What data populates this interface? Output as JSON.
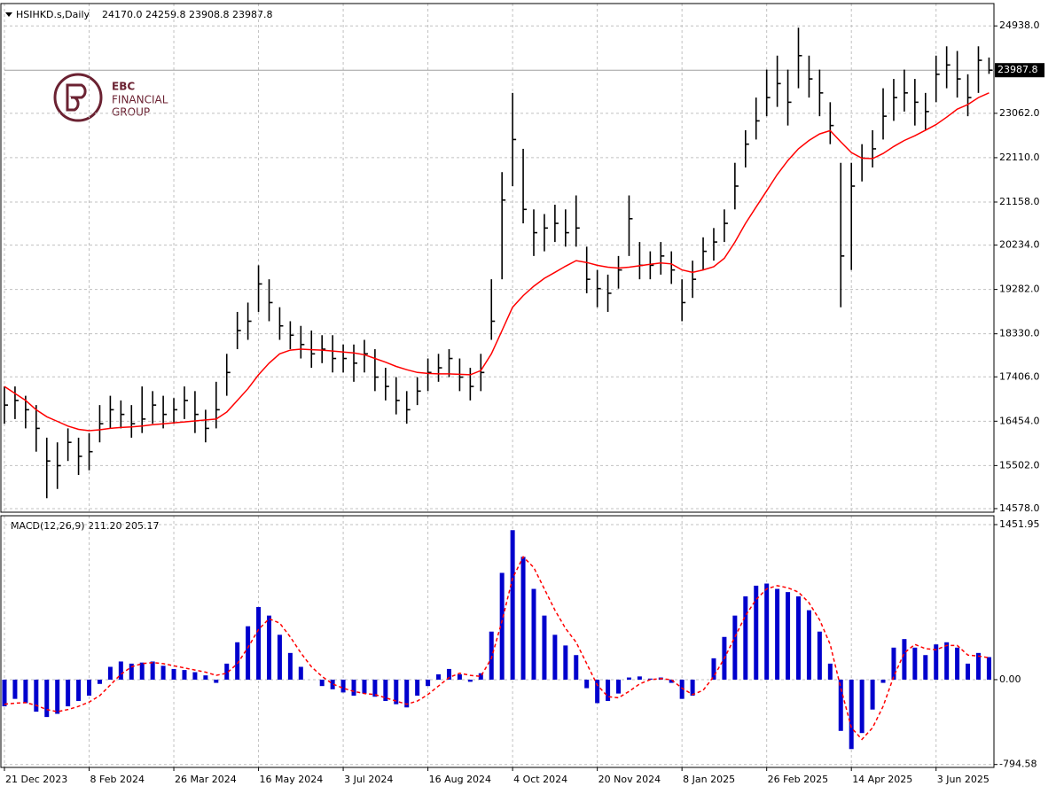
{
  "logo": {
    "lines": [
      "EBC",
      "FINANCIAL",
      "GROUP"
    ]
  },
  "chart_data": [
    {
      "type": "hlc",
      "title": "HSIHKD.s,Daily",
      "quote": "24170.0 24259.8 23908.8 23987.8",
      "color": "#000000",
      "grid": true,
      "categories": [
        "21 Dec 2023",
        null,
        null,
        null,
        null,
        null,
        null,
        null,
        "8 Feb 2024",
        null,
        null,
        null,
        null,
        null,
        null,
        null,
        "26 Mar 2024",
        null,
        null,
        null,
        null,
        null,
        null,
        null,
        "16 May 2024",
        null,
        null,
        null,
        null,
        null,
        null,
        null,
        "3 Jul 2024",
        null,
        null,
        null,
        null,
        null,
        null,
        null,
        "16 Aug 2024",
        null,
        null,
        null,
        null,
        null,
        null,
        null,
        "4 Oct 2024",
        null,
        null,
        null,
        null,
        null,
        null,
        null,
        "20 Nov 2024",
        null,
        null,
        null,
        null,
        null,
        null,
        null,
        "8 Jan 2025",
        null,
        null,
        null,
        null,
        null,
        null,
        null,
        "26 Feb 2025",
        null,
        null,
        null,
        null,
        null,
        null,
        null,
        "14 Apr 2025",
        null,
        null,
        null,
        null,
        null,
        null,
        null,
        "3 Jun 2025",
        null,
        null,
        null,
        null,
        null
      ],
      "high": [
        17200,
        17200,
        17000,
        16800,
        16100,
        16000,
        16300,
        16100,
        16200,
        16800,
        17000,
        16900,
        16800,
        17200,
        17100,
        17000,
        16950,
        17200,
        17100,
        16700,
        17300,
        17900,
        18800,
        19000,
        19800,
        19500,
        18900,
        18600,
        18500,
        18400,
        18300,
        18300,
        18100,
        18100,
        18200,
        18000,
        17600,
        17400,
        17100,
        17400,
        17800,
        17900,
        18000,
        17800,
        17600,
        17900,
        19500,
        21800,
        23500,
        22300,
        21000,
        20900,
        21100,
        21000,
        21300,
        20200,
        19700,
        19600,
        20000,
        21300,
        20300,
        20100,
        20300,
        20100,
        19500,
        19900,
        20400,
        20600,
        21000,
        22000,
        22700,
        23400,
        24000,
        24300,
        24000,
        24900,
        24300,
        24000,
        23300,
        22000,
        22000,
        22400,
        22700,
        23600,
        23800,
        24000,
        23800,
        23500,
        24300,
        24500,
        24400,
        23900,
        24500,
        24259.8
      ],
      "low": [
        16400,
        16500,
        16300,
        15800,
        14800,
        15000,
        15600,
        15300,
        15400,
        16000,
        16300,
        16300,
        16100,
        16200,
        16400,
        16300,
        16400,
        16500,
        16200,
        16000,
        16300,
        17000,
        18000,
        18200,
        18800,
        18600,
        18200,
        18000,
        17800,
        17600,
        17700,
        17500,
        17500,
        17300,
        17500,
        17100,
        16900,
        16600,
        16400,
        16800,
        17100,
        17300,
        17400,
        17100,
        16900,
        17100,
        18200,
        19500,
        21500,
        20700,
        20000,
        20100,
        20300,
        20200,
        20200,
        19200,
        18900,
        18800,
        19300,
        20000,
        19500,
        19500,
        19600,
        19400,
        18600,
        19100,
        19700,
        19900,
        20300,
        21000,
        21900,
        22500,
        23000,
        23200,
        22800,
        23600,
        23400,
        23000,
        22400,
        18900,
        19700,
        21600,
        21900,
        22500,
        22900,
        23100,
        22800,
        22700,
        23300,
        23600,
        23400,
        23000,
        23500,
        23908.8
      ],
      "close": [
        16800,
        16900,
        16700,
        16300,
        15600,
        15500,
        16000,
        15700,
        15800,
        16400,
        16700,
        16600,
        16400,
        16500,
        16800,
        16600,
        16700,
        16900,
        16600,
        16300,
        16700,
        17500,
        18400,
        18600,
        19400,
        19000,
        18500,
        18300,
        18100,
        17900,
        18000,
        17800,
        17800,
        17700,
        17900,
        17400,
        17200,
        16900,
        16700,
        17100,
        17500,
        17600,
        17800,
        17400,
        17200,
        17500,
        18600,
        21200,
        22500,
        21000,
        20500,
        20600,
        20700,
        20500,
        20600,
        19500,
        19300,
        19200,
        19700,
        20800,
        19800,
        19800,
        20000,
        19700,
        19000,
        19500,
        20100,
        20300,
        20700,
        21500,
        22400,
        22900,
        23400,
        23700,
        23300,
        24300,
        23800,
        23500,
        22800,
        20000,
        21500,
        22100,
        22300,
        23000,
        23400,
        23500,
        23300,
        23100,
        23900,
        24100,
        23800,
        23400,
        24200,
        23987.8
      ],
      "ma": {
        "color": "#ff0000",
        "values": [
          17200,
          17050,
          16900,
          16700,
          16550,
          16450,
          16350,
          16280,
          16250,
          16270,
          16300,
          16320,
          16330,
          16350,
          16380,
          16400,
          16420,
          16440,
          16460,
          16480,
          16500,
          16650,
          16900,
          17150,
          17450,
          17700,
          17900,
          17980,
          18000,
          17990,
          17980,
          17960,
          17940,
          17920,
          17880,
          17800,
          17720,
          17630,
          17560,
          17500,
          17480,
          17470,
          17470,
          17460,
          17450,
          17540,
          17900,
          18400,
          18900,
          19150,
          19350,
          19520,
          19650,
          19780,
          19900,
          19860,
          19800,
          19760,
          19740,
          19760,
          19790,
          19820,
          19850,
          19830,
          19700,
          19650,
          19700,
          19770,
          19950,
          20300,
          20700,
          21050,
          21400,
          21750,
          22050,
          22300,
          22480,
          22620,
          22690,
          22450,
          22220,
          22100,
          22090,
          22200,
          22350,
          22480,
          22580,
          22700,
          22820,
          22980,
          23150,
          23250,
          23400,
          23500
        ]
      },
      "last_price": 23987.8,
      "ylim": [
        14501,
        25418
      ],
      "yticks": [
        {
          "value": 14578,
          "label": "14578.0"
        },
        {
          "value": 15502,
          "label": "15502.0"
        },
        {
          "value": 16454,
          "label": "16454.0"
        },
        {
          "value": 17406,
          "label": "17406.0"
        },
        {
          "value": 18330,
          "label": "18330.0"
        },
        {
          "value": 19282,
          "label": "19282.0"
        },
        {
          "value": 20234,
          "label": "20234.0"
        },
        {
          "value": 21158,
          "label": "21158.0"
        },
        {
          "value": 22110,
          "label": "22110.0"
        },
        {
          "value": 23062,
          "label": "23062.0"
        },
        {
          "value": 24938,
          "label": "24938.0"
        }
      ]
    },
    {
      "type": "macd",
      "title": "MACD(12,26,9) 211.20 205.17",
      "grid": true,
      "series": [
        {
          "color": "#0000cd",
          "values": [
            -250,
            -180,
            -220,
            -300,
            -350,
            -320,
            -250,
            -200,
            -150,
            -40,
            120,
            170,
            150,
            160,
            170,
            130,
            100,
            90,
            70,
            40,
            -30,
            150,
            350,
            500,
            680,
            600,
            420,
            250,
            120,
            0,
            -60,
            -90,
            -120,
            -150,
            -130,
            -160,
            -200,
            -230,
            -260,
            -150,
            -60,
            50,
            100,
            50,
            -20,
            60,
            450,
            1000,
            1400,
            1150,
            850,
            600,
            420,
            320,
            230,
            -80,
            -220,
            -200,
            -130,
            20,
            30,
            10,
            20,
            -30,
            -180,
            -150,
            0,
            200,
            400,
            600,
            780,
            880,
            900,
            850,
            820,
            780,
            650,
            450,
            150,
            -480,
            -650,
            -500,
            -280,
            -30,
            300,
            380,
            300,
            230,
            330,
            350,
            300,
            150,
            250,
            211.2
          ]
        },
        {
          "color": "#ff0000",
          "dashed": true,
          "values": [
            -230,
            -220,
            -215,
            -240,
            -280,
            -300,
            -280,
            -250,
            -210,
            -150,
            -50,
            50,
            120,
            150,
            160,
            150,
            130,
            110,
            90,
            70,
            40,
            60,
            150,
            300,
            470,
            570,
            530,
            400,
            250,
            120,
            30,
            -40,
            -80,
            -110,
            -130,
            -140,
            -170,
            -200,
            -230,
            -200,
            -140,
            -60,
            20,
            60,
            40,
            30,
            200,
            550,
            950,
            1150,
            1050,
            850,
            650,
            480,
            350,
            150,
            -50,
            -160,
            -170,
            -110,
            -40,
            0,
            10,
            0,
            -80,
            -140,
            -100,
            30,
            200,
            400,
            600,
            750,
            850,
            880,
            860,
            820,
            720,
            560,
            330,
            -80,
            -450,
            -560,
            -450,
            -250,
            30,
            250,
            330,
            290,
            280,
            320,
            320,
            230,
            220,
            205.17
          ]
        }
      ],
      "ylim": [
        -822,
        1535
      ],
      "yticks": [
        1451.95,
        {
          "value": 0,
          "label": "0.00"
        },
        -794.58
      ]
    }
  ]
}
